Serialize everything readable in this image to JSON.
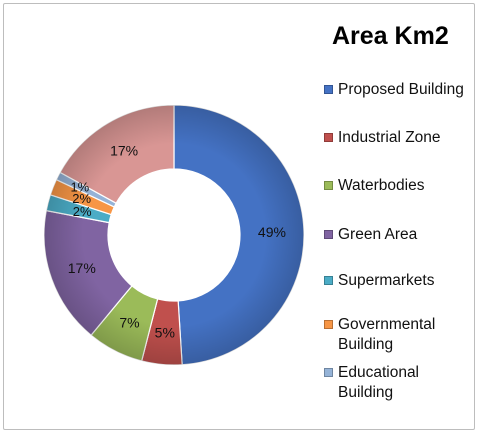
{
  "chart_data": {
    "type": "pie",
    "title": "Area Km2",
    "legend_position": "right",
    "slices": [
      {
        "label": "Proposed Building",
        "value": 49,
        "display": "49%",
        "color": "#4472C4"
      },
      {
        "label": "Industrial Zone",
        "value": 5,
        "display": "5%",
        "color": "#C0504D"
      },
      {
        "label": "Waterbodies",
        "value": 7,
        "display": "7%",
        "color": "#9BBB59"
      },
      {
        "label": "Green Area",
        "value": 17,
        "display": "17%",
        "color": "#8064A2"
      },
      {
        "label": "Supermarkets",
        "value": 2,
        "display": "2%",
        "color": "#4BACC6"
      },
      {
        "label": "Governmental Building",
        "value": 2,
        "display": "2%",
        "color": "#F79646"
      },
      {
        "label": "Educational Building",
        "value": 1,
        "display": "1%",
        "color": "#95B3D7"
      },
      {
        "label": "",
        "value": 17,
        "display": "17%",
        "color": "#D99694"
      }
    ]
  }
}
